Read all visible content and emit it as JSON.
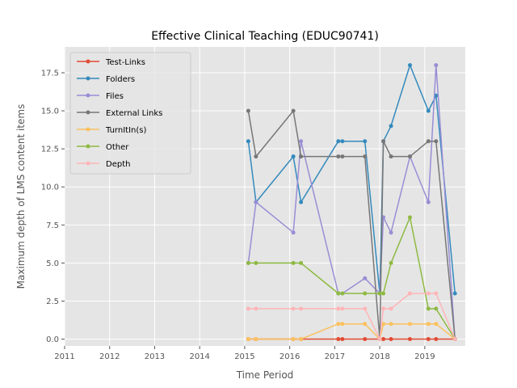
{
  "chart_data": {
    "type": "line",
    "title": "Effective Clinical Teaching (EDUC90741)",
    "xlabel": "Time Period",
    "ylabel": "Maximum depth of LMS content items",
    "xlim": [
      2011,
      2019.9
    ],
    "ylim": [
      -0.45,
      19.2
    ],
    "x_ticks": [
      2011,
      2012,
      2013,
      2014,
      2015,
      2016,
      2017,
      2018,
      2019
    ],
    "x_tick_labels": [
      "2011",
      "2012",
      "2013",
      "2014",
      "2015",
      "2016",
      "2017",
      "2018",
      "2019"
    ],
    "y_ticks": [
      0,
      2.5,
      5,
      7.5,
      10,
      12.5,
      15,
      17.5
    ],
    "y_tick_labels": [
      "0.0",
      "2.5",
      "5.0",
      "7.5",
      "10.0",
      "12.5",
      "15.0",
      "17.5"
    ],
    "grid": true,
    "legend_position": "top-left",
    "x": [
      2015.08,
      2015.25,
      2016.08,
      2016.25,
      2017.08,
      2017.17,
      2017.67,
      2018.0,
      2018.08,
      2018.25,
      2018.67,
      2019.08,
      2019.25,
      2019.67
    ],
    "series": [
      {
        "name": "Test-Links",
        "color": "#E24A33",
        "values": [
          0,
          0,
          0,
          0,
          0,
          0,
          0,
          0,
          0,
          0,
          0,
          0,
          0,
          0
        ]
      },
      {
        "name": "Folders",
        "color": "#348ABD",
        "values": [
          13,
          9,
          12,
          9,
          13,
          13,
          13,
          3,
          13,
          14,
          18,
          15,
          16,
          3
        ]
      },
      {
        "name": "Files",
        "color": "#988ED5",
        "values": [
          5,
          9,
          7,
          13,
          3,
          3,
          4,
          3,
          8,
          7,
          12,
          9,
          18,
          0
        ]
      },
      {
        "name": "External Links",
        "color": "#777777",
        "values": [
          15,
          12,
          15,
          12,
          12,
          12,
          12,
          0,
          13,
          12,
          12,
          13,
          13,
          0
        ]
      },
      {
        "name": "TurnItIn(s)",
        "color": "#FBC15E",
        "values": [
          0,
          0,
          0,
          0,
          1,
          1,
          1,
          0,
          1,
          1,
          1,
          1,
          1,
          0
        ]
      },
      {
        "name": "Other",
        "color": "#8EBA42",
        "values": [
          5,
          5,
          5,
          5,
          3,
          3,
          3,
          3,
          3,
          5,
          8,
          2,
          2,
          0
        ]
      },
      {
        "name": "Depth",
        "color": "#FFB5B8",
        "values": [
          2,
          2,
          2,
          2,
          2,
          2,
          2,
          0,
          2,
          2,
          3,
          3,
          3,
          0
        ]
      }
    ]
  }
}
